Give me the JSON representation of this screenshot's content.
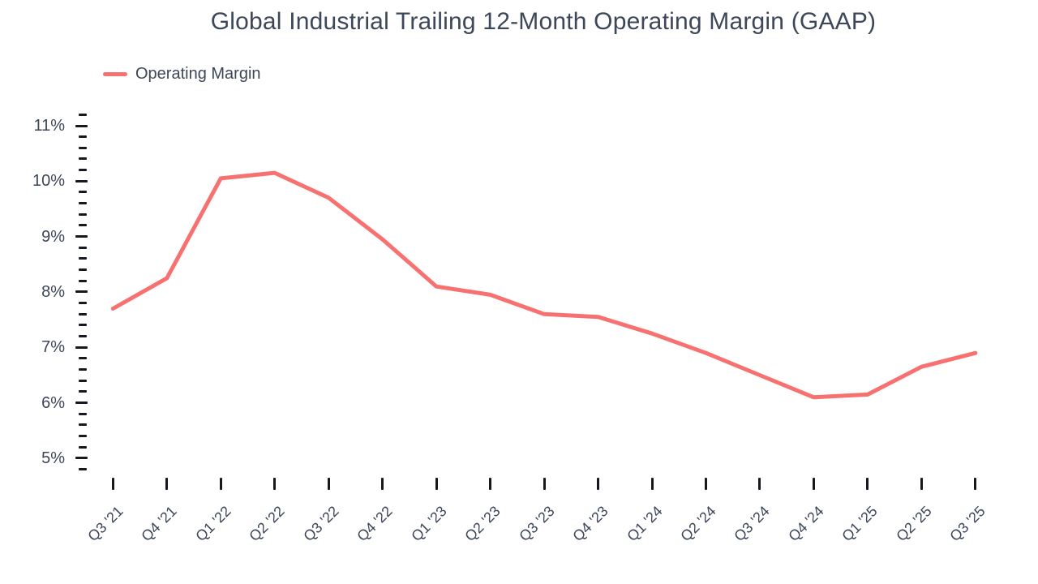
{
  "chart_data": {
    "type": "line",
    "title": "Global Industrial Trailing 12-Month Operating Margin (GAAP)",
    "categories": [
      "Q3 '21",
      "Q4 '21",
      "Q1 '22",
      "Q2 '22",
      "Q3 '22",
      "Q4 '22",
      "Q1 '23",
      "Q2 '23",
      "Q3 '23",
      "Q4 '23",
      "Q1 '24",
      "Q2 '24",
      "Q3 '24",
      "Q4 '24",
      "Q1 '25",
      "Q2 '25",
      "Q3 '25"
    ],
    "series": [
      {
        "name": "Operating Margin",
        "values": [
          7.7,
          8.25,
          10.05,
          10.15,
          9.7,
          8.95,
          8.1,
          7.95,
          7.6,
          7.55,
          7.25,
          6.9,
          6.5,
          6.1,
          6.15,
          6.65,
          6.9
        ],
        "unit": "%",
        "color": "#F87171"
      }
    ],
    "xlabel": "",
    "ylabel": "",
    "ylim": [
      4.8,
      11.2
    ],
    "y_major_tick_labels": [
      "5%",
      "6%",
      "7%",
      "8%",
      "9%",
      "10%",
      "11%"
    ],
    "y_major_tick_values": [
      5,
      6,
      7,
      8,
      9,
      10,
      11
    ],
    "y_minor_tick_step": 0.2,
    "grid": false,
    "axis_lines": false,
    "legend_position": "top-left",
    "background": "#FFFFFF",
    "text_color": "#3C4759",
    "tick_color": "#15181D"
  }
}
